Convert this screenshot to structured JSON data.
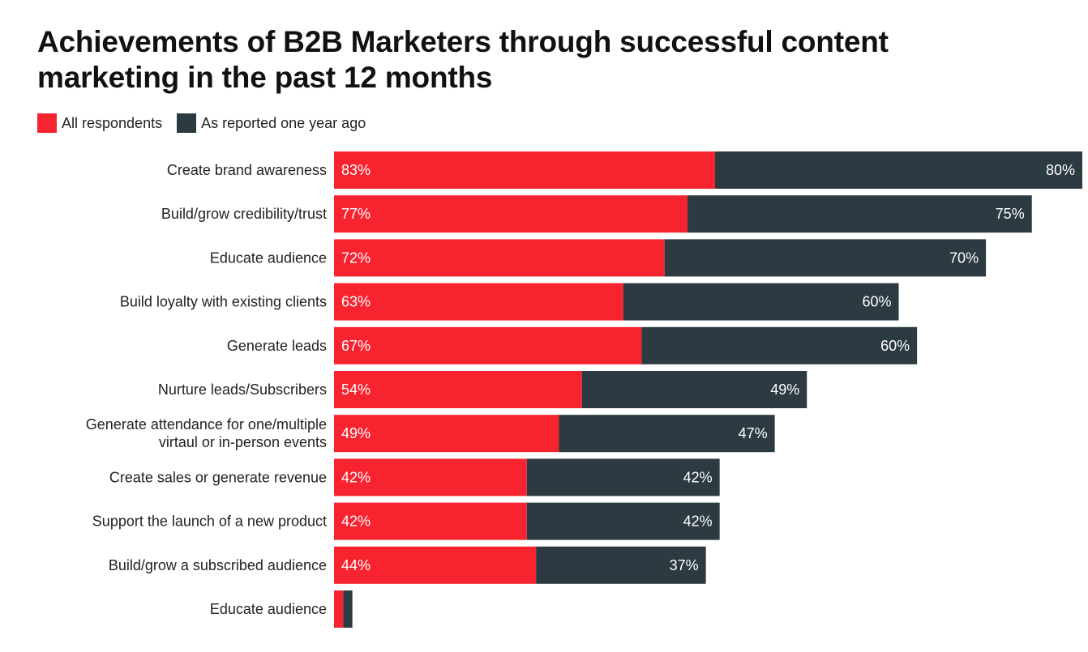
{
  "chart_data": {
    "type": "bar",
    "orientation": "horizontal",
    "stacked": true,
    "title": "Achievements of B2B Marketers through successful content marketing in the past 12 months",
    "legend_position": "top-left",
    "grid": false,
    "categories": [
      [
        "Create brand awareness"
      ],
      [
        "Build/grow credibility/trust"
      ],
      [
        "Educate audience"
      ],
      [
        "Build loyalty with existing clients"
      ],
      [
        "Generate leads"
      ],
      [
        "Nurture leads/Subscribers"
      ],
      [
        "Generate attendance for one/multiple",
        "virtaul or in-person events"
      ],
      [
        "Create sales or generate revenue"
      ],
      [
        "Support the launch of a new product"
      ],
      [
        "Build/grow a subscribed audience"
      ],
      [
        "Educate audience"
      ]
    ],
    "series": [
      {
        "name": "All respondents",
        "color": "#f7232f",
        "values": [
          83,
          77,
          72,
          63,
          67,
          54,
          49,
          42,
          42,
          44,
          2
        ],
        "labels": [
          "83%",
          "77%",
          "72%",
          "63%",
          "67%",
          "54%",
          "49%",
          "42%",
          "42%",
          "44%",
          ""
        ]
      },
      {
        "name": "As reported one year ago",
        "color": "#2c3a42",
        "values": [
          80,
          75,
          70,
          60,
          60,
          49,
          47,
          42,
          42,
          37,
          2
        ],
        "labels": [
          "80%",
          "75%",
          "70%",
          "60%",
          "60%",
          "49%",
          "47%",
          "42%",
          "42%",
          "37%",
          ""
        ]
      }
    ],
    "xlim": [
      0,
      163
    ]
  }
}
